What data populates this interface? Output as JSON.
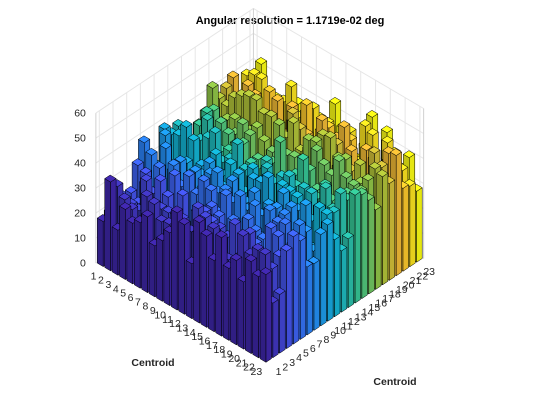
{
  "chart_data": {
    "type": "bar3",
    "title": "Angular resolution =   1.1719e-02 deg",
    "xlabel": "Centroid",
    "ylabel": "Centroid",
    "zlabel": "",
    "x_ticks": [
      "1",
      "2",
      "3",
      "4",
      "5",
      "6",
      "7",
      "8",
      "9",
      "10",
      "11",
      "12",
      "13",
      "14",
      "15",
      "16",
      "17",
      "18",
      "19",
      "20",
      "21",
      "22",
      "23"
    ],
    "y_ticks": [
      "1",
      "2",
      "3",
      "4",
      "5",
      "6",
      "7",
      "8",
      "9",
      "10",
      "11",
      "12",
      "13",
      "14",
      "15",
      "16",
      "17",
      "18",
      "19",
      "20",
      "21",
      "22",
      "23"
    ],
    "z_ticks": [
      "0",
      "10",
      "20",
      "30",
      "40",
      "50",
      "60"
    ],
    "zlim": [
      0,
      60
    ],
    "colormap": "parula",
    "grid": true,
    "value_range_estimate": [
      18,
      58
    ],
    "note_values": "Individual bar heights are not labeled; values are approximate."
  }
}
